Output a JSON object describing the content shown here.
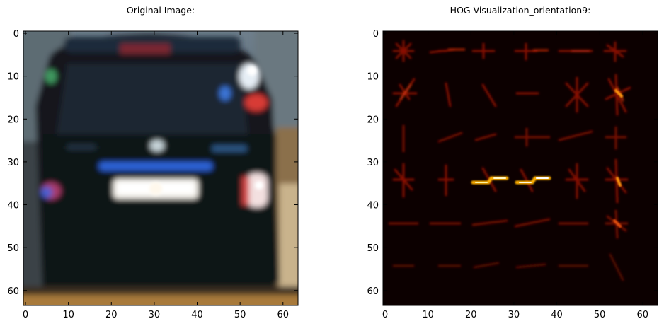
{
  "figure": {
    "panels": [
      {
        "title": "Original Image:",
        "x_ticks": [
          "0",
          "10",
          "20",
          "30",
          "40",
          "50",
          "60"
        ],
        "y_ticks": [
          "0",
          "10",
          "20",
          "30",
          "40",
          "50",
          "60"
        ]
      },
      {
        "title": "HOG Visualization_orientation9:",
        "x_ticks": [
          "0",
          "10",
          "20",
          "30",
          "40",
          "50",
          "60"
        ],
        "y_ticks": [
          "0",
          "10",
          "20",
          "30",
          "40",
          "50",
          "60"
        ]
      }
    ]
  }
}
